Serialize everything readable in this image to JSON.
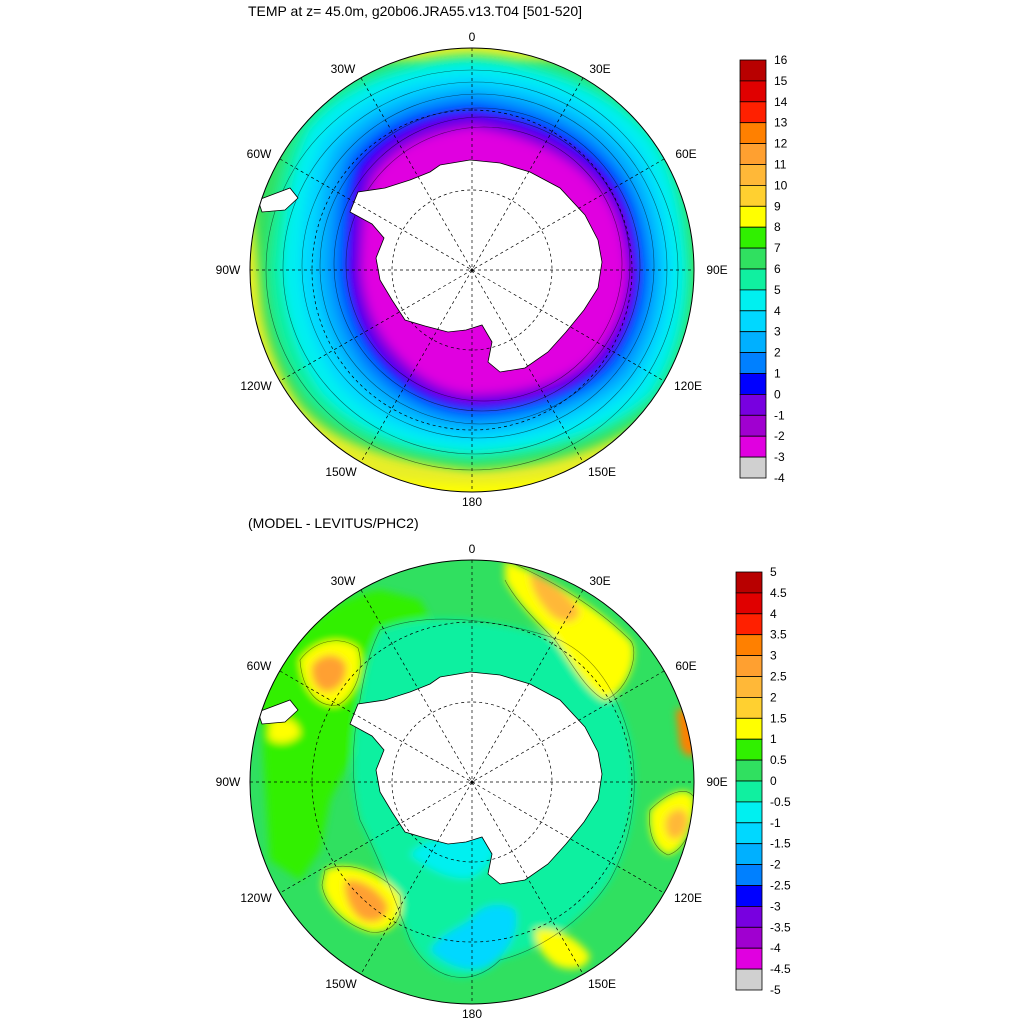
{
  "top_panel": {
    "title": "TEMP at z=  45.0m, g20b06.JRA55.v13.T04 [501-520]",
    "lon_labels": [
      "0",
      "30E",
      "60E",
      "90E",
      "120E",
      "150E",
      "180",
      "150W",
      "120W",
      "90W",
      "60W",
      "30W"
    ],
    "colorbar": {
      "labels": [
        "16",
        "15",
        "14",
        "13",
        "12",
        "11",
        "10",
        "9",
        "8",
        "7",
        "6",
        "5",
        "4",
        "3",
        "2",
        "1",
        "0",
        "-1",
        "-2",
        "-3",
        "-4"
      ],
      "colors": [
        "#b80000",
        "#e00000",
        "#ff2000",
        "#ff8000",
        "#ffa030",
        "#ffb838",
        "#ffd030",
        "#ffff00",
        "#30f000",
        "#30e060",
        "#10f0a0",
        "#00f0f0",
        "#00d8ff",
        "#00b0ff",
        "#0080ff",
        "#0000ff",
        "#7800e0",
        "#a000d0",
        "#e000e0",
        "#d0d0d0",
        "#707070"
      ]
    }
  },
  "bottom_panel": {
    "title": "(MODEL - LEVITUS/PHC2)",
    "lon_labels": [
      "0",
      "30E",
      "60E",
      "90E",
      "120E",
      "150E",
      "180",
      "150W",
      "120W",
      "90W",
      "60W",
      "30W"
    ],
    "colorbar": {
      "labels": [
        "5",
        "4.5",
        "4",
        "3.5",
        "3",
        "2.5",
        "2",
        "1.5",
        "1",
        "0.5",
        "0",
        "-0.5",
        "-1",
        "-1.5",
        "-2",
        "-2.5",
        "-3",
        "-3.5",
        "-4",
        "-4.5",
        "-5"
      ],
      "colors": [
        "#b80000",
        "#e00000",
        "#ff2000",
        "#ff8000",
        "#ffa030",
        "#ffb838",
        "#ffd030",
        "#ffff00",
        "#30f000",
        "#30e060",
        "#10f0a0",
        "#00f0f0",
        "#00d8ff",
        "#00b0ff",
        "#0080ff",
        "#0000ff",
        "#7800e0",
        "#a000d0",
        "#e000e0",
        "#d0d0d0",
        "#707070"
      ]
    }
  }
}
